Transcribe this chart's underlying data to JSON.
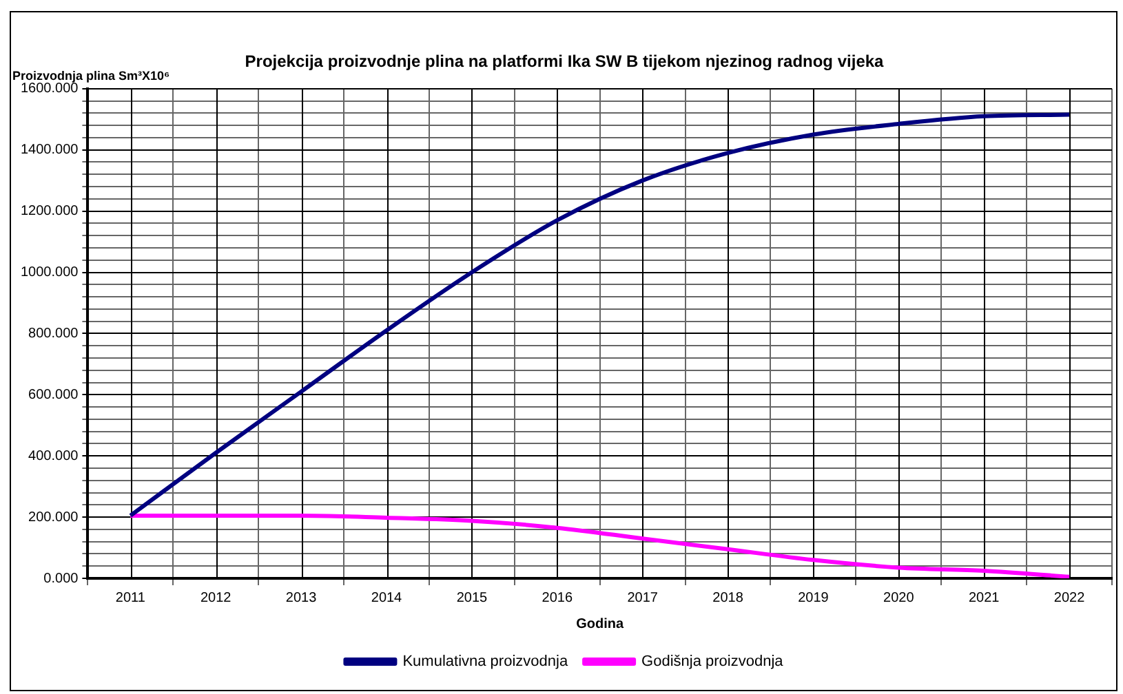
{
  "chart_data": {
    "type": "line",
    "title": "Projekcija proizvodnje plina na platformi Ika SW B tijekom njezinog radnog vijeka",
    "xlabel": "Godina",
    "ylabel": "Proizvodnja plina Sm³X10⁶",
    "categories": [
      "2011",
      "2012",
      "2013",
      "2014",
      "2015",
      "2016",
      "2017",
      "2018",
      "2019",
      "2020",
      "2021",
      "2022"
    ],
    "series": [
      {
        "name": "Kumulativna proizvodnja",
        "color": "#000080",
        "values": [
          205,
          410,
          610,
          810,
          1000,
          1170,
          1300,
          1390,
          1450,
          1485,
          1510,
          1515
        ]
      },
      {
        "name": "Godišnja proizvodnja",
        "color": "#ff00ff",
        "values": [
          205,
          205,
          205,
          198,
          188,
          165,
          130,
          95,
          60,
          35,
          25,
          5
        ]
      }
    ],
    "ylim": [
      0,
      1600
    ],
    "yticks": [
      {
        "value": 0,
        "label": "0.000"
      },
      {
        "value": 40,
        "label": null
      },
      {
        "value": 80,
        "label": null
      },
      {
        "value": 120,
        "label": null
      },
      {
        "value": 160,
        "label": null
      },
      {
        "value": 200,
        "label": "200.000"
      },
      {
        "value": 240,
        "label": null
      },
      {
        "value": 280,
        "label": null
      },
      {
        "value": 320,
        "label": null
      },
      {
        "value": 360,
        "label": null
      },
      {
        "value": 400,
        "label": "400.000"
      },
      {
        "value": 440,
        "label": null
      },
      {
        "value": 480,
        "label": null
      },
      {
        "value": 520,
        "label": null
      },
      {
        "value": 560,
        "label": null
      },
      {
        "value": 600,
        "label": "600.000"
      },
      {
        "value": 640,
        "label": null
      },
      {
        "value": 680,
        "label": null
      },
      {
        "value": 720,
        "label": null
      },
      {
        "value": 760,
        "label": null
      },
      {
        "value": 800,
        "label": "800.000"
      },
      {
        "value": 840,
        "label": null
      },
      {
        "value": 880,
        "label": null
      },
      {
        "value": 920,
        "label": null
      },
      {
        "value": 960,
        "label": null
      },
      {
        "value": 1000,
        "label": "1000.000"
      },
      {
        "value": 1040,
        "label": null
      },
      {
        "value": 1080,
        "label": null
      },
      {
        "value": 1120,
        "label": null
      },
      {
        "value": 1160,
        "label": null
      },
      {
        "value": 1200,
        "label": "1200.000"
      },
      {
        "value": 1240,
        "label": null
      },
      {
        "value": 1280,
        "label": null
      },
      {
        "value": 1320,
        "label": null
      },
      {
        "value": 1360,
        "label": null
      },
      {
        "value": 1400,
        "label": "1400.000"
      },
      {
        "value": 1440,
        "label": null
      },
      {
        "value": 1480,
        "label": null
      },
      {
        "value": 1520,
        "label": null
      },
      {
        "value": 1560,
        "label": null
      },
      {
        "value": 1600,
        "label": "1600.000"
      }
    ],
    "grid": true,
    "legend": "bottom",
    "marker": "none",
    "line_style": "solid"
  }
}
